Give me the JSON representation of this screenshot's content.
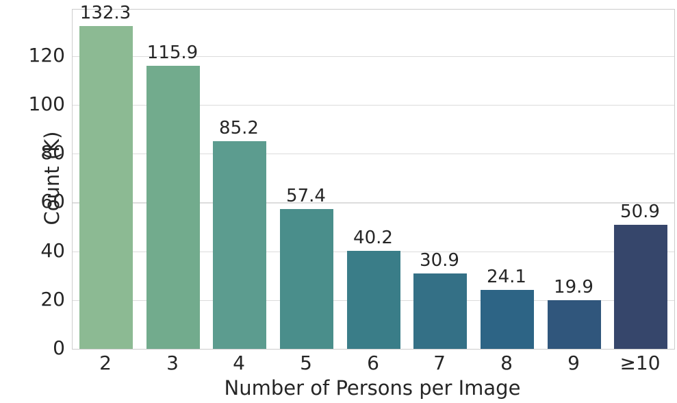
{
  "chart_data": {
    "type": "bar",
    "categories": [
      "2",
      "3",
      "4",
      "5",
      "6",
      "7",
      "8",
      "9",
      "≥10"
    ],
    "values": [
      132.3,
      115.9,
      85.2,
      57.4,
      40.2,
      30.9,
      24.1,
      19.9,
      50.9
    ],
    "value_labels": [
      "132.3",
      "115.9",
      "85.2",
      "57.4",
      "40.2",
      "30.9",
      "24.1",
      "19.9",
      "50.9"
    ],
    "bar_colors": [
      "#8cba93",
      "#72ab8d",
      "#5c9c8f",
      "#4a8e8b",
      "#3a7d88",
      "#347086",
      "#2d6485",
      "#30567c",
      "#36466b"
    ],
    "title": "",
    "xlabel": "Number of Persons per Image",
    "ylabel": "Count (K)",
    "yticks": [
      0,
      20,
      40,
      60,
      80,
      100,
      120
    ],
    "ylim": [
      0,
      139
    ],
    "grid": "horizontal",
    "legend": "none",
    "text_color": "#262626",
    "gridline_color": "#dcdcdc",
    "spine_color": "#cccccc",
    "background_color": "#ffffff"
  }
}
